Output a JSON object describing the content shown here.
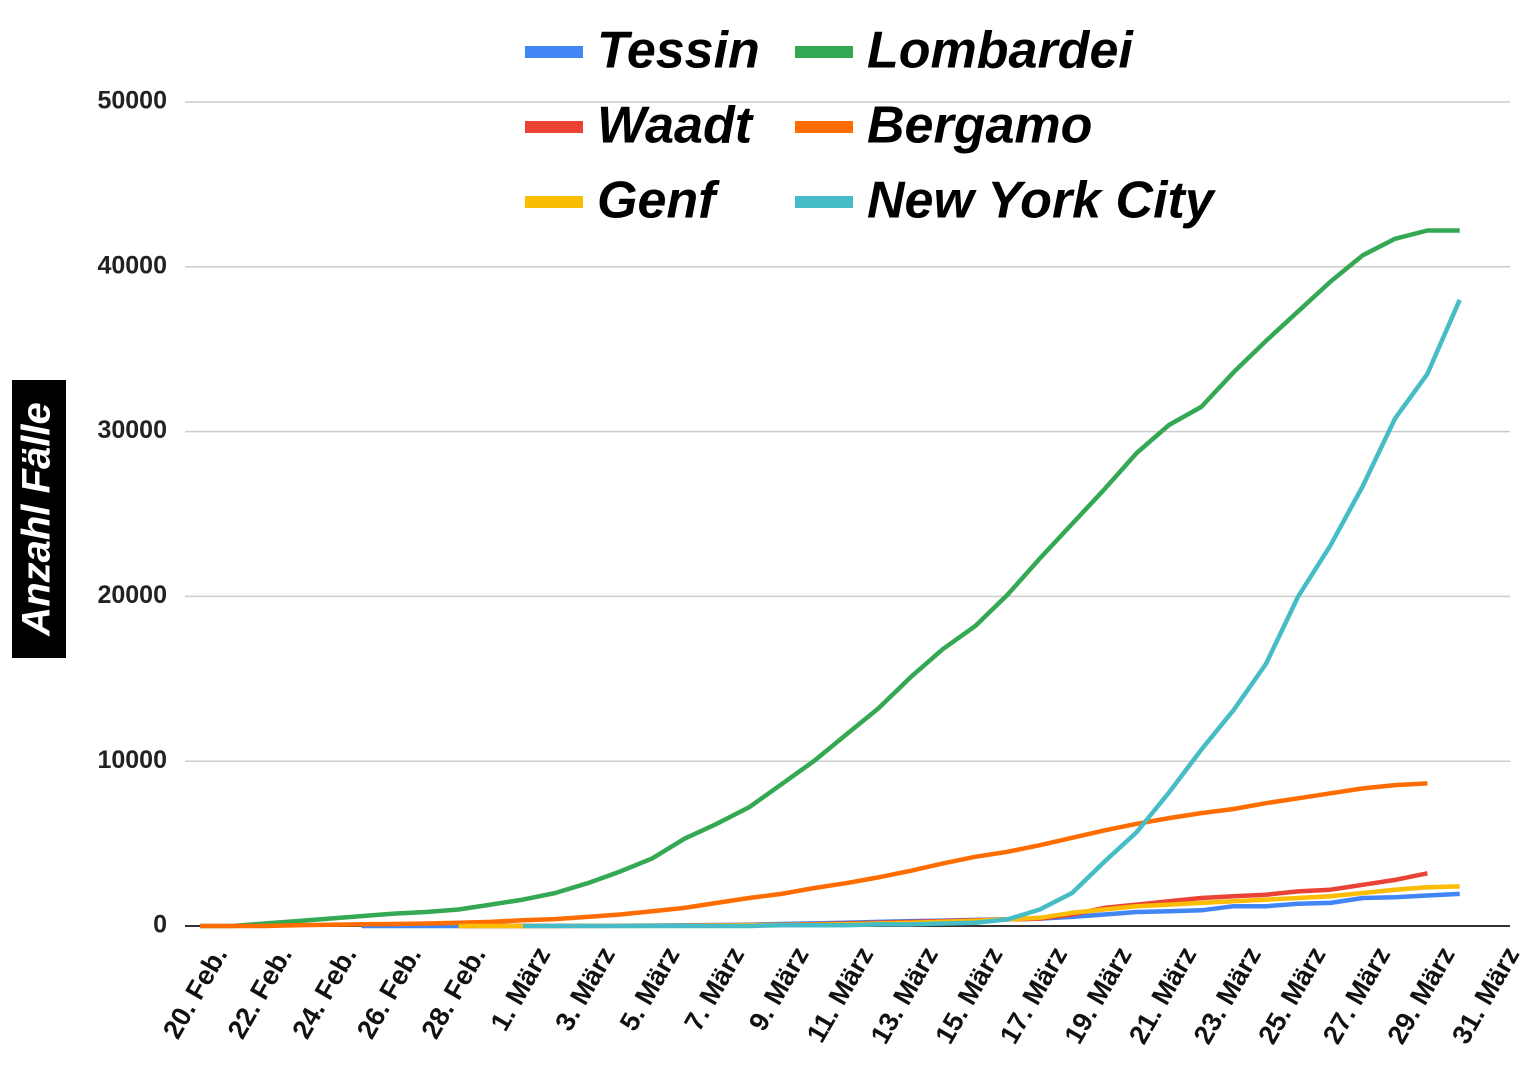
{
  "chart_data": {
    "type": "line",
    "y_label": "Anzahl Fälle",
    "categories": [
      "20. Feb.",
      null,
      "22. Feb.",
      null,
      "24. Feb.",
      null,
      "26. Feb.",
      null,
      "28. Feb.",
      null,
      "1. März",
      null,
      "3. März",
      null,
      "5. März",
      null,
      "7. März",
      null,
      "9. März",
      null,
      "11. März",
      null,
      "13. März",
      null,
      "15. März",
      null,
      "17. März",
      null,
      "19. März",
      null,
      "21. März",
      null,
      "23. März",
      null,
      "25. März",
      null,
      "27. März",
      null,
      "29. März",
      null,
      "31. März"
    ],
    "ylim": [
      0,
      50000
    ],
    "yticks": [
      0,
      10000,
      20000,
      30000,
      40000,
      50000
    ],
    "grid": true,
    "series": [
      {
        "name": "Tessin",
        "color": "#4285f4",
        "values": [
          null,
          null,
          null,
          null,
          null,
          1,
          1,
          1,
          1,
          1,
          5,
          10,
          15,
          20,
          30,
          45,
          60,
          80,
          120,
          160,
          200,
          250,
          300,
          330,
          370,
          400,
          450,
          550,
          700,
          850,
          900,
          950,
          1200,
          1200,
          1350,
          1400,
          1700,
          1750,
          1850,
          1950,
          null
        ]
      },
      {
        "name": "Lombardei",
        "color": "#34a853",
        "values": [
          0,
          0,
          150,
          300,
          450,
          600,
          750,
          850,
          1000,
          1300,
          1600,
          2000,
          2600,
          3300,
          4100,
          5300,
          6200,
          7200,
          8600,
          10000,
          11600,
          13200,
          15100,
          16800,
          18200,
          20100,
          22300,
          24400,
          26500,
          28700,
          30400,
          31500,
          33600,
          35500,
          37300,
          39100,
          40700,
          41700,
          42200,
          42200,
          null
        ]
      },
      {
        "name": "Waadt",
        "color": "#ea4335",
        "values": [
          null,
          null,
          null,
          null,
          null,
          null,
          null,
          null,
          1,
          1,
          2,
          3,
          5,
          10,
          15,
          25,
          40,
          60,
          80,
          110,
          150,
          200,
          250,
          300,
          350,
          400,
          450,
          700,
          1100,
          1300,
          1500,
          1700,
          1800,
          1900,
          2100,
          2200,
          2500,
          2800,
          3200,
          null,
          null
        ]
      },
      {
        "name": "Bergamo",
        "color": "#ff6d01",
        "values": [
          0,
          0,
          0,
          50,
          80,
          110,
          120,
          150,
          200,
          250,
          350,
          420,
          550,
          700,
          900,
          1100,
          1400,
          1700,
          1950,
          2300,
          2600,
          2950,
          3350,
          3800,
          4200,
          4500,
          4900,
          5350,
          5800,
          6200,
          6550,
          6850,
          7100,
          7450,
          7750,
          8050,
          8350,
          8550,
          8650,
          null,
          null
        ]
      },
      {
        "name": "Genf",
        "color": "#fbbc04",
        "values": [
          null,
          null,
          null,
          null,
          null,
          null,
          null,
          null,
          1,
          1,
          2,
          3,
          5,
          8,
          12,
          20,
          30,
          45,
          60,
          80,
          110,
          150,
          200,
          260,
          320,
          400,
          500,
          800,
          1000,
          1200,
          1300,
          1400,
          1500,
          1600,
          1700,
          1800,
          2000,
          2200,
          2350,
          2400,
          null
        ]
      },
      {
        "name": "New York City",
        "color": "#46bdc6",
        "values": [
          null,
          null,
          null,
          null,
          null,
          null,
          null,
          null,
          null,
          null,
          0,
          0,
          0,
          0,
          0,
          0,
          0,
          0,
          50,
          50,
          50,
          100,
          100,
          150,
          200,
          400,
          1000,
          2000,
          3900,
          5700,
          8100,
          10700,
          13100,
          15900,
          20000,
          23100,
          26700,
          30800,
          33500,
          38000,
          null
        ]
      }
    ]
  }
}
